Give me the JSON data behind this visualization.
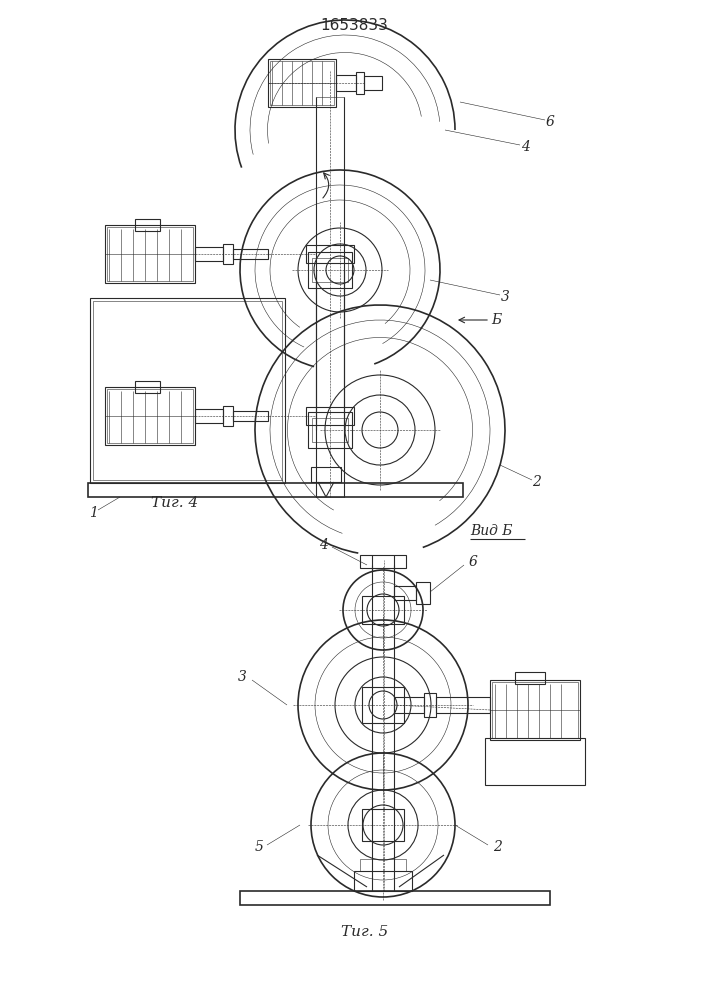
{
  "title": "1653833",
  "fig4_label": "Τиг. 4",
  "fig5_label": "Τиг. 5",
  "vid_b_label": "Вид Б",
  "background": "#ffffff",
  "line_color": "#2a2a2a",
  "lw": 0.8,
  "lw_thin": 0.4,
  "lw_thick": 1.2
}
